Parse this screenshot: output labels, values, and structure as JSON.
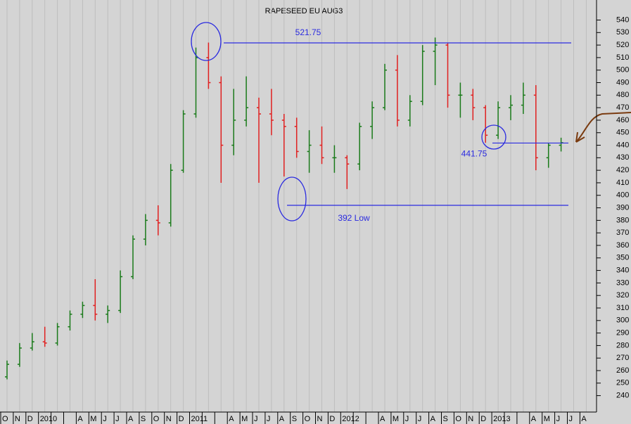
{
  "chart_data": {
    "type": "ohlc",
    "title": "RAPESEED EU AUG3",
    "categories": [
      "O",
      "N",
      "D",
      "2010",
      null,
      null,
      "A",
      "M",
      "J",
      "J",
      "A",
      "S",
      "O",
      "N",
      "D",
      "2011",
      null,
      null,
      "A",
      "M",
      "J",
      "J",
      "A",
      "S",
      "O",
      "N",
      "D",
      "2012",
      null,
      null,
      "A",
      "M",
      "J",
      "J",
      "A",
      "S",
      "O",
      "N",
      "D",
      "2013",
      null,
      null,
      "A",
      "M",
      "J",
      "J",
      "A"
    ],
    "open": [
      255,
      265,
      278,
      283,
      282,
      295,
      305,
      312,
      305,
      308,
      335,
      365,
      380,
      378,
      420,
      465,
      510,
      490,
      440,
      460,
      470,
      465,
      460,
      455,
      435,
      440,
      430,
      430,
      425,
      455,
      470,
      500,
      460,
      475,
      515,
      520,
      480,
      480,
      470,
      448,
      470,
      472,
      480,
      430,
      440,
      null,
      null
    ],
    "high": [
      268,
      282,
      290,
      295,
      298,
      308,
      315,
      333,
      312,
      340,
      368,
      385,
      392,
      425,
      468,
      518,
      522,
      495,
      485,
      495,
      478,
      485,
      465,
      462,
      452,
      455,
      440,
      432,
      458,
      475,
      505,
      512,
      480,
      520,
      526,
      522,
      490,
      485,
      472,
      475,
      480,
      490,
      488,
      442,
      446,
      null,
      null
    ],
    "low": [
      253,
      263,
      276,
      279,
      280,
      292,
      302,
      300,
      298,
      306,
      333,
      360,
      368,
      375,
      418,
      462,
      485,
      410,
      432,
      455,
      410,
      448,
      415,
      430,
      418,
      425,
      418,
      405,
      420,
      445,
      468,
      455,
      455,
      472,
      488,
      470,
      462,
      460,
      442,
      445,
      460,
      465,
      420,
      422,
      435,
      null,
      null
    ],
    "close": [
      265,
      278,
      283,
      282,
      295,
      305,
      312,
      305,
      308,
      335,
      365,
      380,
      378,
      420,
      465,
      510,
      490,
      440,
      460,
      470,
      465,
      460,
      455,
      435,
      440,
      430,
      430,
      425,
      455,
      470,
      500,
      460,
      475,
      515,
      520,
      480,
      480,
      470,
      448,
      470,
      472,
      480,
      430,
      440,
      442,
      null,
      null
    ],
    "up_color": "#1a7a1a",
    "down_color": "#e02020",
    "ylim": [
      228,
      556
    ],
    "yticks": [
      240,
      250,
      260,
      270,
      280,
      290,
      300,
      310,
      320,
      330,
      340,
      350,
      360,
      370,
      380,
      390,
      400,
      410,
      420,
      430,
      440,
      450,
      460,
      470,
      480,
      490,
      500,
      510,
      520,
      530,
      540
    ],
    "levels": [
      {
        "value": 521.75,
        "label": "521.75"
      },
      {
        "value": 441.75,
        "label": "441.75"
      },
      {
        "value": 392,
        "label": "392 Low"
      }
    ],
    "level_color": "#2a2ae0",
    "grid": true
  }
}
